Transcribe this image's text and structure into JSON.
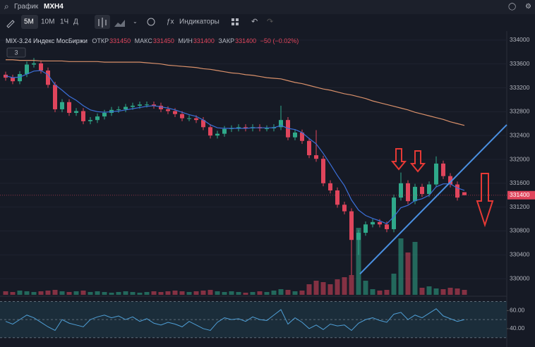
{
  "toolbar": {
    "section": "График",
    "symbol": "MXH4",
    "intervals": [
      "5M",
      "10M",
      "1Ч",
      "Д"
    ],
    "indicators": "Индикаторы"
  },
  "legend": {
    "instrument": "MIX-3.24 Индекс МосБиржи",
    "open_label": "ОТКР",
    "high_label": "МАКС",
    "low_label": "МИН",
    "close_label": "ЗАКР",
    "change": "−50 (−0.02%)",
    "badge": 3
  },
  "chart_data": {
    "type": "candlestick",
    "up_color": "#2fa98a",
    "down_color": "#e0455c",
    "open": [
      333420,
      333370,
      333310,
      333430,
      333590,
      333610,
      333490,
      333250,
      332840,
      332960,
      332780,
      332810,
      332640,
      332660,
      332720,
      332780,
      332830,
      332840,
      332880,
      332900,
      332920,
      332920,
      332900,
      332840,
      332810,
      332760,
      332690,
      332690,
      332660,
      332540,
      332400,
      332430,
      332510,
      332520,
      332540,
      332520,
      332540,
      332520,
      332520,
      332540,
      332660,
      332370,
      332450,
      332310,
      332070,
      332010,
      331600,
      331480,
      331240,
      331130,
      330650,
      330770,
      330910,
      330950,
      330910,
      330830,
      331360,
      331600,
      331300,
      331540,
      331420,
      331580,
      331930,
      331720,
      331580,
      331450
    ],
    "high": [
      333470,
      333420,
      333480,
      333640,
      333700,
      333660,
      333540,
      333300,
      333010,
      333010,
      332860,
      332860,
      332710,
      332770,
      332830,
      332880,
      332890,
      332930,
      332950,
      332970,
      332970,
      332970,
      332950,
      332890,
      332860,
      332810,
      332740,
      332740,
      332710,
      332590,
      332480,
      332560,
      332570,
      332590,
      332590,
      332590,
      332590,
      332570,
      332590,
      332900,
      332710,
      332500,
      332500,
      332360,
      332490,
      332060,
      331650,
      331530,
      331290,
      331180,
      330820,
      330960,
      331000,
      331000,
      330960,
      331410,
      331780,
      331650,
      331590,
      331590,
      331630,
      332050,
      331980,
      331770,
      331630,
      331450
    ],
    "low": [
      333320,
      333260,
      333260,
      333380,
      333540,
      333440,
      333200,
      332790,
      332790,
      332730,
      332730,
      332590,
      332590,
      332610,
      332670,
      332730,
      332780,
      332790,
      332830,
      332850,
      332870,
      332850,
      332790,
      332760,
      332710,
      332640,
      332640,
      332610,
      332490,
      332350,
      332350,
      332380,
      332460,
      332470,
      332470,
      332470,
      332470,
      332470,
      332470,
      332490,
      332320,
      332320,
      332260,
      332020,
      331960,
      331550,
      331430,
      331190,
      331080,
      330060,
      330400,
      330720,
      330860,
      330860,
      330780,
      330780,
      331310,
      331250,
      331250,
      331370,
      331370,
      331530,
      331670,
      331530,
      331310,
      331400
    ],
    "close": [
      333370,
      333310,
      333430,
      333590,
      333610,
      333490,
      333250,
      332840,
      332960,
      332780,
      332810,
      332640,
      332660,
      332720,
      332780,
      332830,
      332840,
      332880,
      332900,
      332920,
      332920,
      332900,
      332840,
      332810,
      332760,
      332690,
      332690,
      332660,
      332540,
      332400,
      332430,
      332510,
      332520,
      332540,
      332520,
      332540,
      332520,
      332520,
      332540,
      332660,
      332370,
      332450,
      332310,
      332070,
      332010,
      331600,
      331480,
      331240,
      331130,
      330650,
      330770,
      330910,
      330950,
      330910,
      330830,
      331360,
      331600,
      331300,
      331540,
      331420,
      331580,
      331930,
      331720,
      331580,
      331360,
      331400
    ],
    "ma_fast": {
      "color": "#3b6fd8",
      "values": [
        333400,
        333370,
        333380,
        333430,
        333480,
        333490,
        333420,
        333250,
        333160,
        333060,
        332990,
        332900,
        332830,
        332800,
        332790,
        332800,
        332810,
        332830,
        332850,
        332870,
        332890,
        332900,
        332880,
        332860,
        332830,
        332790,
        332750,
        332720,
        332660,
        332580,
        332530,
        332520,
        332520,
        332520,
        332520,
        332530,
        332530,
        332530,
        332530,
        332570,
        332520,
        332500,
        332450,
        332350,
        332260,
        332100,
        331920,
        331730,
        331560,
        331320,
        331150,
        331060,
        331010,
        330970,
        330920,
        331040,
        331190,
        331230,
        331310,
        331340,
        331400,
        331540,
        331590,
        331590,
        331520,
        331480
      ]
    },
    "ma_slow": {
      "color": "#d9906a",
      "values": [
        333670,
        333670,
        333660,
        333660,
        333660,
        333650,
        333650,
        333650,
        333650,
        333640,
        333640,
        333640,
        333640,
        333640,
        333630,
        333630,
        333630,
        333630,
        333630,
        333630,
        333620,
        333610,
        333600,
        333580,
        333570,
        333560,
        333550,
        333540,
        333520,
        333510,
        333490,
        333470,
        333450,
        333440,
        333420,
        333410,
        333390,
        333370,
        333360,
        333350,
        333320,
        333290,
        333270,
        333240,
        333210,
        333180,
        333160,
        333130,
        333100,
        333080,
        333050,
        333020,
        332980,
        332950,
        332920,
        332890,
        332860,
        332830,
        332790,
        332760,
        332730,
        332700,
        332670,
        332630,
        332600,
        332570
      ]
    },
    "volume": [
      5,
      4,
      6,
      5,
      4,
      5,
      6,
      7,
      5,
      4,
      5,
      6,
      4,
      5,
      4,
      3,
      4,
      5,
      4,
      3,
      4,
      5,
      4,
      5,
      6,
      5,
      4,
      5,
      6,
      7,
      5,
      4,
      5,
      4,
      3,
      4,
      5,
      4,
      6,
      8,
      7,
      5,
      6,
      15,
      20,
      18,
      15,
      22,
      25,
      28,
      95,
      20,
      8,
      6,
      7,
      30,
      80,
      60,
      75,
      10,
      12,
      9,
      8,
      10,
      9,
      7
    ],
    "vlim": [
      0,
      100
    ],
    "ylim": [
      329730,
      334140
    ],
    "yticks": [
      330000,
      330400,
      330800,
      331200,
      331600,
      332000,
      332400,
      332800,
      333200,
      333600,
      334000
    ],
    "grid": true,
    "trendline": {
      "color": "#4a90e2",
      "x": [
        50.2,
        71
      ],
      "y": [
        330080,
        332580
      ]
    },
    "oscillator": {
      "color": "#4f9fd6",
      "ylim": [
        29,
        72
      ],
      "yticks": [
        {
          "value": 60,
          "label": "60.00"
        },
        {
          "value": 40,
          "label": "40.00"
        }
      ],
      "levels": [
        70,
        50,
        30
      ],
      "values": [
        48,
        45,
        50,
        55,
        52,
        47,
        42,
        38,
        50,
        46,
        44,
        42,
        50,
        53,
        55,
        52,
        54,
        50,
        53,
        48,
        51,
        46,
        44,
        47,
        45,
        42,
        48,
        44,
        40,
        38,
        47,
        52,
        50,
        51,
        48,
        53,
        50,
        49,
        55,
        61,
        45,
        52,
        47,
        40,
        44,
        39,
        45,
        43,
        44,
        38,
        46,
        50,
        52,
        49,
        47,
        56,
        58,
        50,
        55,
        52,
        57,
        62,
        54,
        51,
        48,
        50
      ]
    }
  }
}
